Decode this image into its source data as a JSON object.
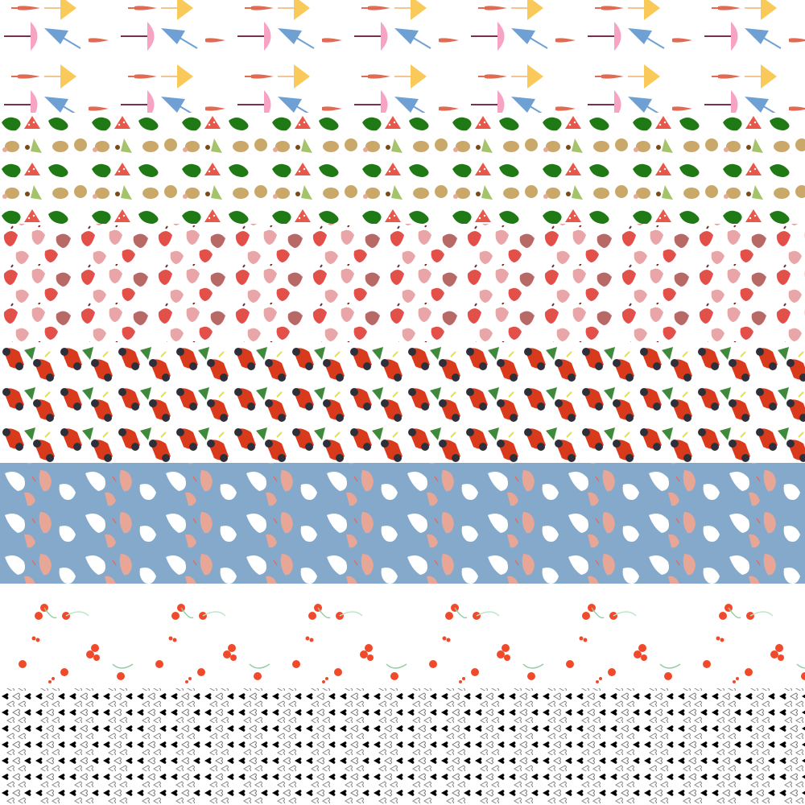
{
  "bands": [
    {
      "name": "umbrella-pattern",
      "icons": [
        "umbrella-icon"
      ],
      "background": "#ffffff",
      "colors": [
        "#f9c95a",
        "#f7a3c3",
        "#6fa0d4",
        "#e06a52"
      ]
    },
    {
      "name": "mushroom-frog-pattern",
      "icons": [
        "frog-icon",
        "mushroom-icon"
      ],
      "background": "#ffffff",
      "colors": [
        "#1f7a16",
        "#e8584a",
        "#c9a86a",
        "#a3c46a"
      ]
    },
    {
      "name": "strawberry-pattern",
      "icons": [
        "strawberry-icon"
      ],
      "background": "#ffffff",
      "colors": [
        "#e2504a",
        "#e9a6a8",
        "#b96868"
      ]
    },
    {
      "name": "car-pattern",
      "icons": [
        "car-icon",
        "tree-icon"
      ],
      "background": "#ffffff",
      "colors": [
        "#d93a1c",
        "#2f2f3a",
        "#3f8a3a"
      ]
    },
    {
      "name": "bird-shrimp-pattern",
      "icons": [
        "bird-icon",
        "shrimp-icon"
      ],
      "background": "#84a9cb",
      "colors": [
        "#ffffff",
        "#e8a696"
      ]
    },
    {
      "name": "cherry-pattern",
      "icons": [
        "cherry-icon"
      ],
      "background": "#ffffff",
      "colors": [
        "#f04a2a",
        "#8fcf9f"
      ]
    },
    {
      "name": "heart-pattern",
      "icons": [
        "heart-icon"
      ],
      "background": "#ffffff",
      "colors": [
        "#000000",
        "#888888"
      ]
    }
  ]
}
